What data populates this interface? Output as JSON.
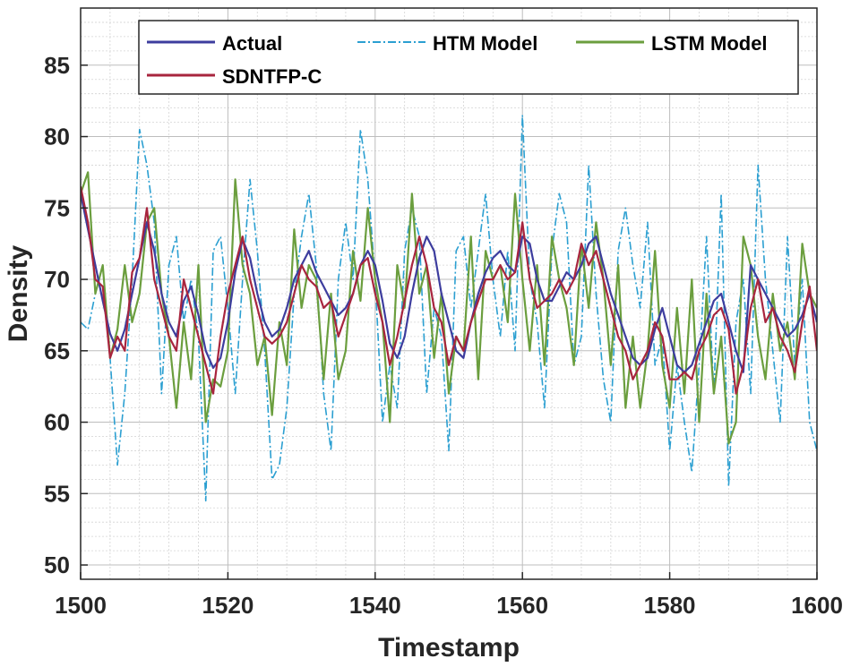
{
  "chart_data": {
    "type": "line",
    "title": "",
    "xlabel": "Timestamp",
    "ylabel": "Density",
    "xlim": [
      1500,
      1600
    ],
    "ylim": [
      49,
      89
    ],
    "xticks": [
      "1500",
      "1520",
      "1540",
      "1560",
      "1580",
      "1600"
    ],
    "yticks": [
      "50",
      "55",
      "60",
      "65",
      "70",
      "75",
      "80",
      "85"
    ],
    "grid": true,
    "minor_grid": true,
    "legend_position": "top-right",
    "x": [
      1500,
      1501,
      1502,
      1503,
      1504,
      1505,
      1506,
      1507,
      1508,
      1509,
      1510,
      1511,
      1512,
      1513,
      1514,
      1515,
      1516,
      1517,
      1518,
      1519,
      1520,
      1521,
      1522,
      1523,
      1524,
      1525,
      1526,
      1527,
      1528,
      1529,
      1530,
      1531,
      1532,
      1533,
      1534,
      1535,
      1536,
      1537,
      1538,
      1539,
      1540,
      1541,
      1542,
      1543,
      1544,
      1545,
      1546,
      1547,
      1548,
      1549,
      1550,
      1551,
      1552,
      1553,
      1554,
      1555,
      1556,
      1557,
      1558,
      1559,
      1560,
      1561,
      1562,
      1563,
      1564,
      1565,
      1566,
      1567,
      1568,
      1569,
      1570,
      1571,
      1572,
      1573,
      1574,
      1575,
      1576,
      1577,
      1578,
      1579,
      1580,
      1581,
      1582,
      1583,
      1584,
      1585,
      1586,
      1587,
      1588,
      1589,
      1590,
      1591,
      1592,
      1593,
      1594,
      1595,
      1596,
      1597,
      1598,
      1599,
      1600
    ],
    "series": [
      {
        "name": "Actual",
        "color": "#3d3d9e",
        "dash": "solid",
        "values": [
          76.0,
          73.5,
          71.0,
          68.5,
          66.2,
          65.0,
          66.5,
          69.0,
          71.5,
          74.0,
          72.0,
          69.0,
          67.0,
          66.0,
          68.5,
          69.5,
          67.5,
          65.0,
          63.8,
          64.5,
          67.0,
          70.5,
          72.8,
          71.5,
          69.0,
          67.0,
          66.0,
          66.5,
          68.0,
          70.0,
          71.0,
          72.0,
          70.5,
          69.5,
          68.5,
          67.5,
          68.0,
          69.0,
          71.0,
          72.0,
          71.0,
          68.5,
          65.5,
          64.5,
          66.0,
          69.0,
          71.5,
          73.0,
          72.0,
          69.0,
          67.0,
          65.0,
          64.5,
          67.0,
          69.0,
          70.5,
          71.5,
          72.0,
          71.0,
          70.5,
          73.0,
          72.5,
          70.0,
          68.5,
          68.5,
          69.5,
          70.5,
          70.0,
          71.0,
          72.5,
          73.0,
          71.0,
          69.0,
          67.5,
          66.0,
          64.5,
          64.0,
          64.5,
          66.5,
          68.0,
          66.0,
          64.0,
          63.5,
          64.0,
          65.5,
          67.0,
          68.5,
          69.0,
          67.0,
          65.0,
          63.5,
          71.0,
          70.0,
          69.0,
          68.0,
          67.0,
          66.0,
          66.5,
          67.5,
          69.0,
          67.0
        ]
      },
      {
        "name": "HTM Model",
        "color": "#2b9fd1",
        "dash": "dash-dot",
        "values": [
          67.0,
          66.5,
          69.0,
          71.0,
          64.5,
          57.0,
          62.0,
          70.0,
          80.5,
          78.0,
          74.0,
          62.0,
          71.0,
          73.0,
          67.0,
          70.0,
          66.0,
          54.5,
          72.0,
          73.0,
          68.0,
          62.0,
          70.0,
          77.0,
          72.0,
          65.0,
          56.0,
          57.0,
          61.0,
          69.0,
          73.0,
          76.0,
          71.0,
          62.0,
          58.0,
          70.0,
          74.0,
          70.0,
          80.5,
          77.0,
          70.0,
          60.0,
          64.0,
          61.0,
          72.0,
          75.0,
          73.0,
          62.0,
          68.0,
          66.0,
          58.0,
          72.0,
          73.0,
          68.0,
          72.0,
          76.0,
          70.0,
          66.0,
          72.0,
          65.0,
          81.5,
          70.0,
          67.0,
          61.0,
          72.0,
          76.0,
          74.0,
          64.0,
          66.0,
          78.0,
          69.0,
          63.0,
          60.0,
          72.0,
          75.0,
          71.0,
          68.0,
          74.0,
          64.0,
          66.0,
          58.0,
          64.0,
          60.0,
          56.5,
          64.0,
          73.0,
          62.0,
          76.0,
          55.5,
          67.0,
          70.0,
          62.0,
          78.0,
          70.0,
          65.0,
          60.0,
          73.0,
          64.0,
          70.0,
          60.0,
          58.0
        ]
      },
      {
        "name": "LSTM Model",
        "color": "#6b9e3e",
        "dash": "solid",
        "values": [
          76.0,
          77.5,
          69.0,
          71.0,
          64.5,
          66.5,
          71.0,
          67.0,
          69.0,
          74.0,
          75.0,
          69.0,
          66.0,
          61.0,
          67.0,
          63.0,
          71.0,
          60.0,
          63.0,
          62.5,
          65.0,
          77.0,
          71.0,
          69.0,
          64.0,
          66.0,
          60.5,
          67.0,
          64.0,
          73.5,
          68.0,
          71.0,
          70.0,
          63.0,
          69.0,
          63.0,
          65.0,
          72.0,
          68.5,
          75.0,
          70.0,
          67.0,
          60.0,
          71.0,
          68.0,
          76.0,
          69.0,
          71.0,
          64.5,
          69.0,
          62.0,
          66.0,
          65.0,
          73.0,
          63.0,
          72.0,
          70.0,
          71.0,
          67.0,
          76.0,
          70.0,
          65.0,
          71.0,
          64.0,
          73.0,
          70.0,
          68.0,
          64.0,
          72.5,
          68.0,
          74.0,
          70.0,
          64.0,
          71.0,
          61.0,
          66.0,
          61.0,
          65.0,
          72.0,
          64.0,
          61.0,
          68.0,
          62.0,
          70.0,
          60.0,
          69.0,
          62.0,
          66.0,
          58.5,
          60.0,
          73.0,
          71.0,
          66.0,
          63.0,
          69.0,
          65.0,
          67.0,
          63.0,
          72.5,
          69.0,
          68.0
        ]
      },
      {
        "name": "SDNTFP-C",
        "color": "#a8253e",
        "dash": "solid",
        "values": [
          76.5,
          74.0,
          70.0,
          69.5,
          64.5,
          66.0,
          65.0,
          70.5,
          71.5,
          75.0,
          70.0,
          68.0,
          66.0,
          65.0,
          70.0,
          68.0,
          66.0,
          64.0,
          62.0,
          66.0,
          69.0,
          71.0,
          73.0,
          70.0,
          68.0,
          66.0,
          65.5,
          66.0,
          67.0,
          69.0,
          71.0,
          70.0,
          69.5,
          68.0,
          68.5,
          66.0,
          67.5,
          69.0,
          71.0,
          71.5,
          69.0,
          67.0,
          64.0,
          66.0,
          68.5,
          71.0,
          73.0,
          71.0,
          68.0,
          67.0,
          64.0,
          66.0,
          65.0,
          67.0,
          68.5,
          70.0,
          70.0,
          71.0,
          70.0,
          70.5,
          74.0,
          70.0,
          68.0,
          68.5,
          69.0,
          70.0,
          69.0,
          70.0,
          72.5,
          71.0,
          72.0,
          70.0,
          68.0,
          66.0,
          65.0,
          63.0,
          64.0,
          65.0,
          67.0,
          66.0,
          63.0,
          63.0,
          63.5,
          63.0,
          65.0,
          66.0,
          67.5,
          68.0,
          66.5,
          62.0,
          64.0,
          68.0,
          70.0,
          67.0,
          68.0,
          66.0,
          65.0,
          63.5,
          67.0,
          69.5,
          65.0
        ]
      }
    ]
  }
}
